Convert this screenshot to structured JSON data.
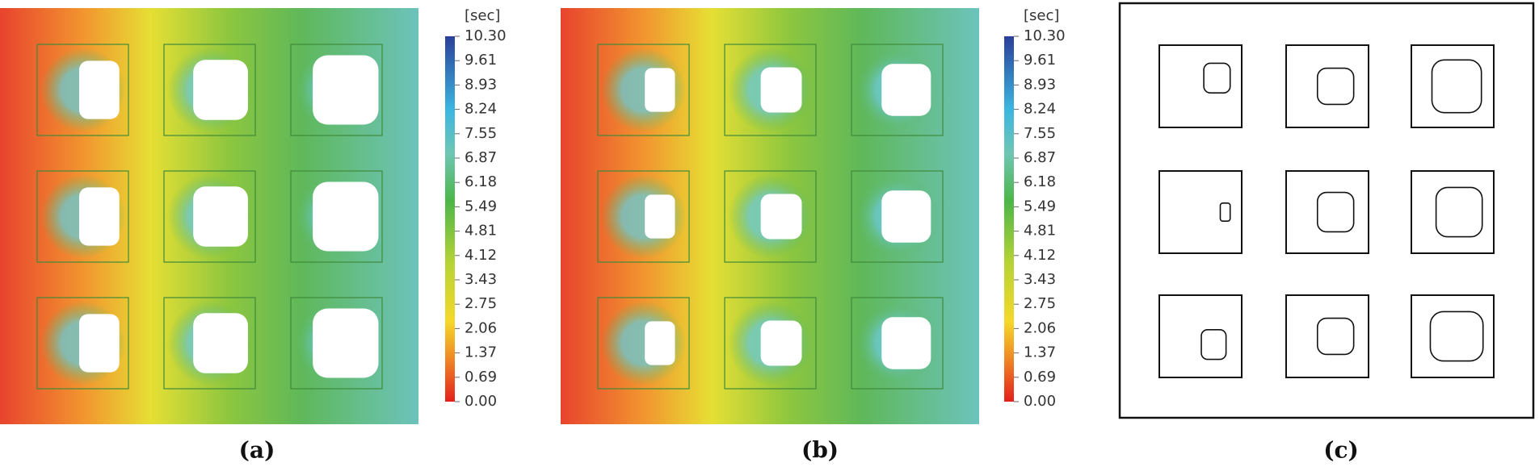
{
  "colorbar": {
    "unit": "[sec]",
    "ticks": [
      "10.30",
      "9.61",
      "8.93",
      "8.24",
      "7.55",
      "6.87",
      "6.18",
      "5.49",
      "4.81",
      "4.12",
      "3.43",
      "2.75",
      "2.06",
      "1.37",
      "0.69",
      "0.00"
    ]
  },
  "panels": [
    {
      "label": "(a)"
    },
    {
      "label": "(b)"
    },
    {
      "label": "(c)"
    }
  ]
}
